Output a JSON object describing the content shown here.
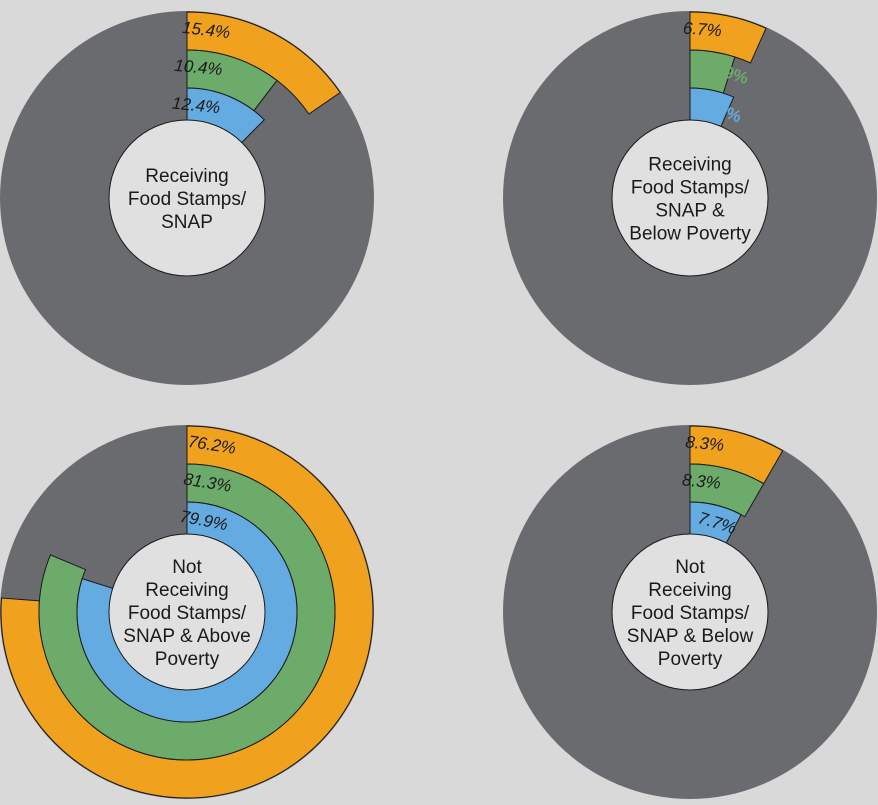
{
  "colors": {
    "background": "#d9d9d9",
    "track": "#6a6b6e",
    "orange": "#f0a21e",
    "green": "#6cab6a",
    "blue": "#63abe0",
    "center": "#e0e0e0",
    "outline": "#1a1a1a",
    "text": "#1a1a1a"
  },
  "chart_data": [
    {
      "type": "radial-bar",
      "center_label": [
        "Receiving",
        "Food Stamps/",
        "SNAP"
      ],
      "series": [
        {
          "color": "orange",
          "value": 15.4,
          "label": "15.4%"
        },
        {
          "color": "green",
          "value": 10.4,
          "label": "10.4%"
        },
        {
          "color": "blue",
          "value": 12.4,
          "label": "12.4%"
        }
      ]
    },
    {
      "type": "radial-bar",
      "center_label": [
        "Receiving",
        "Food Stamps/",
        "SNAP &",
        "Below Poverty"
      ],
      "series": [
        {
          "color": "orange",
          "value": 6.7,
          "label": "6.7%"
        },
        {
          "color": "green",
          "value": 4.9,
          "label": "4.9%"
        },
        {
          "color": "blue",
          "value": 6.5,
          "label": "6.5%"
        }
      ]
    },
    {
      "type": "radial-bar",
      "center_label": [
        "Not",
        "Receiving",
        "Food Stamps/",
        "SNAP & Above",
        "Poverty"
      ],
      "series": [
        {
          "color": "orange",
          "value": 76.2,
          "label": "76.2%"
        },
        {
          "color": "green",
          "value": 81.3,
          "label": "81.3%"
        },
        {
          "color": "blue",
          "value": 79.9,
          "label": "79.9%"
        }
      ]
    },
    {
      "type": "radial-bar",
      "center_label": [
        "Not",
        "Receiving",
        "Food Stamps/",
        "SNAP & Below",
        "Poverty"
      ],
      "series": [
        {
          "color": "orange",
          "value": 8.3,
          "label": "8.3%"
        },
        {
          "color": "green",
          "value": 8.3,
          "label": "8.3%"
        },
        {
          "color": "blue",
          "value": 7.7,
          "label": "7.7%"
        }
      ]
    }
  ]
}
